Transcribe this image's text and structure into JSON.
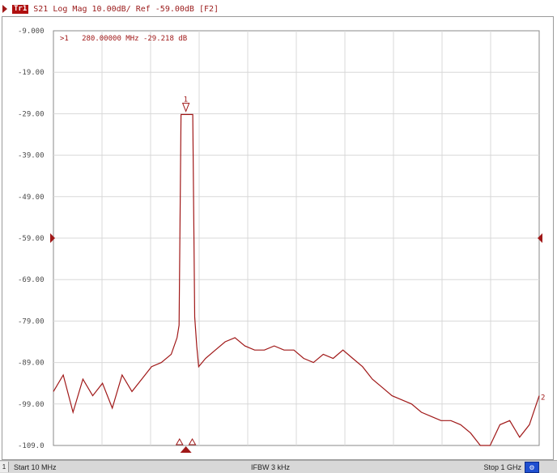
{
  "header": {
    "trace_label": "Tr1",
    "trace_info": "S21 Log Mag 10.00dB/ Ref -59.00dB [F2]"
  },
  "marker": {
    "readout": ">1   280.00000 MHz -29.218 dB",
    "number": "1"
  },
  "axis": {
    "y_ticks": [
      "-9.000",
      "-19.00",
      "-29.00",
      "-39.00",
      "-49.00",
      "-59.00",
      "-69.00",
      "-79.00",
      "-89.00",
      "-99.00",
      "-109.0"
    ],
    "right_edge_label": "2"
  },
  "status": {
    "channel": "1",
    "start": "Start 10 MHz",
    "ifbw": "IFBW 3 kHz",
    "stop": "Stop 1 GHz",
    "config_icon": "config-icon"
  },
  "colors": {
    "trace": "#a01818",
    "grid": "#d8d8d8",
    "status_button": "#1f4fd0"
  },
  "chart_data": {
    "type": "line",
    "title": "S21 Log Mag 10.00dB/ Ref -59.00dB [F2]",
    "xlabel": "",
    "ylabel": "",
    "xlim": [
      10,
      1000
    ],
    "ylim": [
      -109,
      -9
    ],
    "x_unit": "MHz",
    "y_unit": "dB",
    "grid": true,
    "reference_level": -59.0,
    "series": [
      {
        "x": [
          10,
          30,
          50,
          70,
          90,
          110,
          130,
          150,
          170,
          190,
          210,
          230,
          250,
          262,
          266,
          270,
          275,
          280,
          285,
          290,
          294,
          298,
          302,
          306,
          320,
          340,
          360,
          380,
          400,
          420,
          440,
          460,
          480,
          500,
          520,
          540,
          560,
          580,
          600,
          620,
          640,
          660,
          680,
          700,
          720,
          740,
          760,
          780,
          800,
          820,
          840,
          860,
          880,
          900,
          920,
          940,
          960,
          980,
          1000
        ],
        "y": [
          -96,
          -92,
          -101,
          -93,
          -97,
          -94,
          -100,
          -92,
          -96,
          -93,
          -90,
          -89,
          -87,
          -83,
          -80,
          -29.2,
          -29.2,
          -29.2,
          -29.2,
          -29.2,
          -29.2,
          -78,
          -85,
          -90,
          -88,
          -86,
          -84,
          -83,
          -85,
          -86,
          -86,
          -85,
          -86,
          -86,
          -88,
          -89,
          -87,
          -88,
          -86,
          -88,
          -90,
          -93,
          -95,
          -97,
          -98,
          -99,
          -101,
          -102,
          -103,
          -103,
          -104,
          -106,
          -109,
          -109,
          -104,
          -103,
          -107,
          -104,
          -97
        ]
      }
    ]
  }
}
